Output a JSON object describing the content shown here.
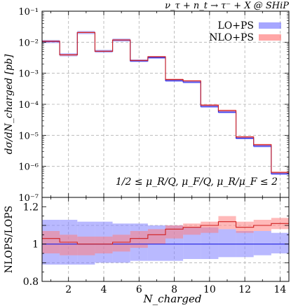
{
  "chart_data": [
    {
      "type": "step-histogram",
      "panel": "main",
      "title": "ν_τ + n_t → τ⁻ + X @ SHiP",
      "xlabel": "N_charged",
      "ylabel": "dσ/dN_charged [pb]",
      "yscale": "log",
      "ylim": [
        1e-07,
        0.1
      ],
      "xlim": [
        0.5,
        14.5
      ],
      "grid": true,
      "legend": "top-right",
      "annotation": "1/2 ≤ μ_R/Q, μ_F/Q, μ_R/μ_F ≤ 2",
      "x_ticks": [
        2,
        4,
        6,
        8,
        10,
        12,
        14
      ],
      "y_tick_labels": [
        "10⁻⁷",
        "10⁻⁶",
        "10⁻⁵",
        "10⁻⁴",
        "10⁻³",
        "10⁻²",
        "10⁻¹"
      ],
      "bin_edges": [
        0.5,
        1.5,
        2.5,
        3.5,
        4.5,
        5.5,
        6.5,
        7.5,
        8.5,
        9.5,
        10.5,
        11.5,
        12.5,
        13.5,
        14.5
      ],
      "series": [
        {
          "name": "LO+PS",
          "color": "#8080ff",
          "line": "#2020e0",
          "values": [
            0.0105,
            0.0039,
            0.0205,
            0.0051,
            0.0117,
            0.0025,
            0.0032,
            0.00058,
            0.00052,
            8.5e-05,
            5.6e-05,
            8.1e-06,
            4.5e-06,
            5.8e-07
          ],
          "band_low": [
            0.0094,
            0.0035,
            0.0183,
            0.0046,
            0.0105,
            0.0023,
            0.0029,
            0.00053,
            0.00047,
            7.7e-05,
            5.1e-05,
            7.4e-06,
            4.1e-06,
            5.3e-07
          ],
          "band_high": [
            0.0119,
            0.0044,
            0.0231,
            0.0057,
            0.0131,
            0.0028,
            0.0036,
            0.00065,
            0.00058,
            9.5e-05,
            6.3e-05,
            9.1e-06,
            5e-06,
            6.5e-07
          ]
        },
        {
          "name": "NLO+PS",
          "color": "#ff8080",
          "line": "#d02020",
          "values": [
            0.0107,
            0.0039,
            0.0206,
            0.0051,
            0.0118,
            0.0026,
            0.0034,
            0.00063,
            0.00057,
            9.4e-05,
            6.3e-05,
            8.9e-06,
            5e-06,
            6.4e-07
          ],
          "band_low": [
            0.0101,
            0.0037,
            0.0197,
            0.0049,
            0.0112,
            0.0024,
            0.0032,
            0.0006,
            0.00054,
            8.8e-05,
            5.9e-05,
            8.3e-06,
            4.7e-06,
            6e-07
          ],
          "band_high": [
            0.0114,
            0.0042,
            0.0218,
            0.0054,
            0.0125,
            0.0027,
            0.0036,
            0.00067,
            0.0006,
            0.0001,
            6.7e-05,
            9.4e-06,
            5.3e-06,
            6.8e-07
          ]
        }
      ]
    },
    {
      "type": "step-histogram",
      "panel": "ratio",
      "xlabel": "N_charged",
      "ylabel": "NLOPS/LOPS",
      "ylim": [
        0.8,
        1.25
      ],
      "xlim": [
        0.5,
        14.5
      ],
      "grid": true,
      "x_ticks": [
        2,
        4,
        6,
        8,
        10,
        12,
        14
      ],
      "y_ticks": [
        0.8,
        1,
        1.2
      ],
      "x_tick_labels": [
        "2",
        "4",
        "6",
        "8",
        "10",
        "12",
        "14"
      ],
      "y_tick_labels": [
        "0.8",
        "1",
        "1.2"
      ],
      "bin_edges": [
        0.5,
        1.5,
        2.5,
        3.5,
        4.5,
        5.5,
        6.5,
        7.5,
        8.5,
        9.5,
        10.5,
        11.5,
        12.5,
        13.5,
        14.5
      ],
      "series": [
        {
          "name": "LO+PS",
          "color": "#8080ff",
          "line": "#2020e0",
          "values": [
            1,
            1,
            1,
            1,
            1,
            1,
            1,
            1,
            1,
            1,
            1,
            1,
            1,
            1
          ],
          "band_low": [
            0.89,
            0.89,
            0.89,
            0.9,
            0.9,
            0.91,
            0.91,
            0.91,
            0.92,
            0.92,
            0.93,
            0.93,
            0.94,
            0.95
          ],
          "band_high": [
            1.13,
            1.13,
            1.12,
            1.12,
            1.11,
            1.11,
            1.1,
            1.1,
            1.09,
            1.09,
            1.08,
            1.07,
            1.07,
            1.06
          ]
        },
        {
          "name": "NLO+PS",
          "color": "#ff8080",
          "line": "#d02020",
          "values": [
            1.03,
            1.01,
            1.0,
            1.0,
            1.01,
            1.03,
            1.05,
            1.08,
            1.09,
            1.1,
            1.12,
            1.09,
            1.1,
            1.11
          ],
          "band_low": [
            0.95,
            0.94,
            0.94,
            0.95,
            0.96,
            0.98,
            1.0,
            1.03,
            1.05,
            1.06,
            1.08,
            1.06,
            1.07,
            1.08
          ],
          "band_high": [
            1.07,
            1.05,
            1.04,
            1.04,
            1.05,
            1.07,
            1.08,
            1.1,
            1.11,
            1.12,
            1.15,
            1.12,
            1.13,
            1.14
          ]
        }
      ]
    }
  ]
}
